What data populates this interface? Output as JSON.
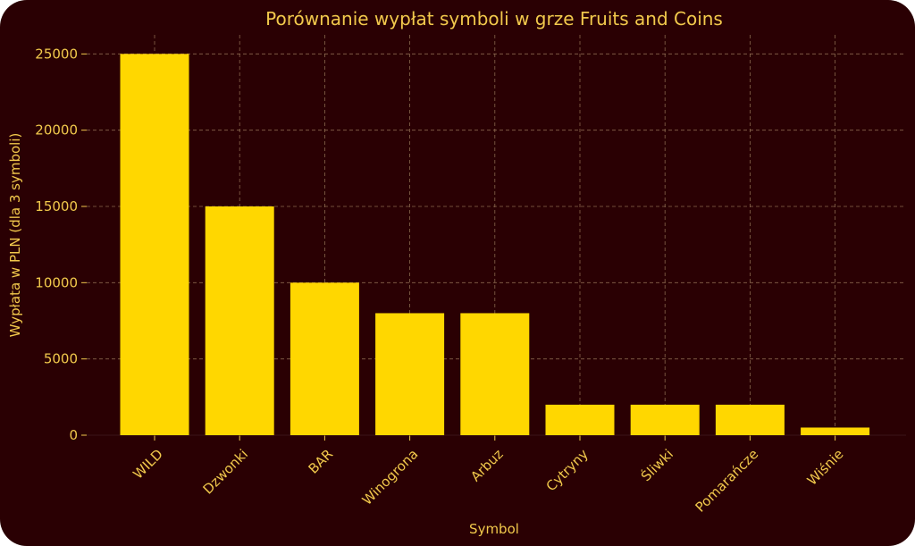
{
  "colors": {
    "background": "#2a0003",
    "bar": "#ffd700",
    "text": "#f2c94c",
    "grid": "#a08060"
  },
  "chart_data": {
    "type": "bar",
    "title": "Porównanie wypłat symboli w grze Fruits and Coins",
    "xlabel": "Symbol",
    "ylabel": "Wypłata w PLN (dla 3 symboli)",
    "categories": [
      "WILD",
      "Dzwonki",
      "BAR",
      "Winogrona",
      "Arbuz",
      "Cytryny",
      "Śliwki",
      "Pomarańcze",
      "Wiśnie"
    ],
    "values": [
      25000,
      15000,
      10000,
      8000,
      8000,
      2000,
      2000,
      2000,
      500
    ],
    "ylim": [
      0,
      26250
    ],
    "yticks": [
      0,
      5000,
      10000,
      15000,
      20000,
      25000
    ],
    "xtick_rotation": -45,
    "grid": true,
    "grid_style": "dashed",
    "legend": "none"
  }
}
